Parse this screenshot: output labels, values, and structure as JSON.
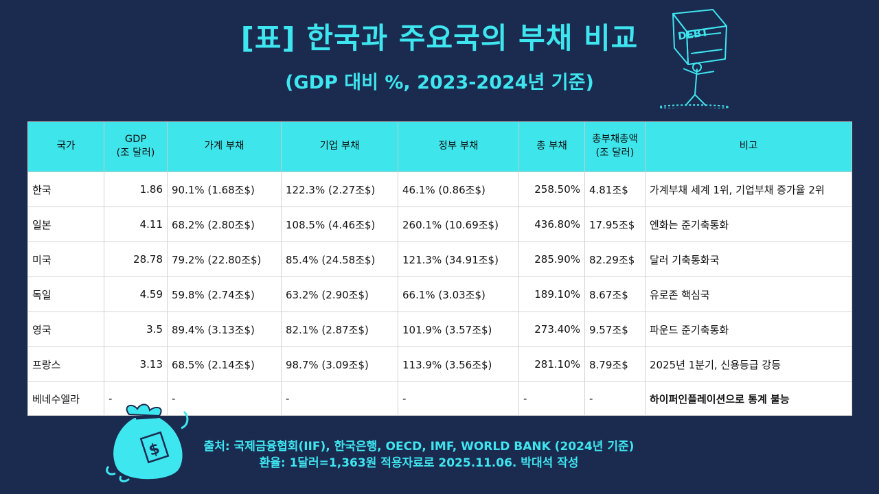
{
  "header": {
    "title": "[표] 한국과 주요국의 부채 비교",
    "subtitle": "(GDP 대비 %, 2023-2024년 기준)",
    "art_label": "DEBT"
  },
  "colors": {
    "accent": "#3ee6ec",
    "background": "#1b2a4f",
    "warning": "#c00000"
  },
  "table": {
    "headers": {
      "country": "국가",
      "gdp_line1": "GDP",
      "gdp_line2": "(조 달러)",
      "household": "가계 부채",
      "corporate": "기업 부채",
      "government": "정부 부채",
      "total": "총 부채",
      "total_amt_line1": "총부채총액",
      "total_amt_line2": "(조 달러)",
      "note": "비고"
    },
    "rows": [
      {
        "country": "한국",
        "gdp": "1.86",
        "household": "90.1% (1.68조$)",
        "corporate": "122.3% (2.27조$)",
        "government": "46.1% (0.86조$)",
        "total": "258.50%",
        "total_amt": "4.81조$",
        "note": "가계부채 세계 1위, 기업부채 증가율 2위"
      },
      {
        "country": "일본",
        "gdp": "4.11",
        "household": "68.2% (2.80조$)",
        "corporate": "108.5% (4.46조$)",
        "government": "260.1% (10.69조$)",
        "total": "436.80%",
        "total_amt": "17.95조$",
        "note": "엔화는 준기축통화"
      },
      {
        "country": "미국",
        "gdp": "28.78",
        "household": "79.2% (22.80조$)",
        "corporate": "85.4% (24.58조$)",
        "government": "121.3% (34.91조$)",
        "total": "285.90%",
        "total_amt": "82.29조$",
        "note": "달러 기축통화국"
      },
      {
        "country": "독일",
        "gdp": "4.59",
        "household": "59.8% (2.74조$)",
        "corporate": "63.2% (2.90조$)",
        "government": "66.1% (3.03조$)",
        "total": "189.10%",
        "total_amt": "8.67조$",
        "note": "유로존 핵심국"
      },
      {
        "country": "영국",
        "gdp": "3.5",
        "household": "89.4% (3.13조$)",
        "corporate": "82.1% (2.87조$)",
        "government": "101.9% (3.57조$)",
        "total": "273.40%",
        "total_amt": "9.57조$",
        "note": "파운드 준기축통화"
      },
      {
        "country": "프랑스",
        "gdp": "3.13",
        "household": "68.5% (2.14조$)",
        "corporate": "98.7% (3.09조$)",
        "government": "113.9% (3.56조$)",
        "total": "281.10%",
        "total_amt": "8.79조$",
        "note": "2025년 1분기, 신용등급 강등"
      },
      {
        "country": "베네수엘라",
        "gdp": "-",
        "household": "-",
        "corporate": "-",
        "government": "-",
        "total": "-",
        "total_amt": "-",
        "note": "하이퍼인플레이션으로 통계 불능"
      }
    ]
  },
  "footer": {
    "source": "출처: 국제금융협회(IIF), 한국은행, OECD, IMF, WORLD BANK (2024년 기준)",
    "rate": "환율: 1달러=1,363원 적용자료로 2025.11.06. 박대석 작성"
  }
}
